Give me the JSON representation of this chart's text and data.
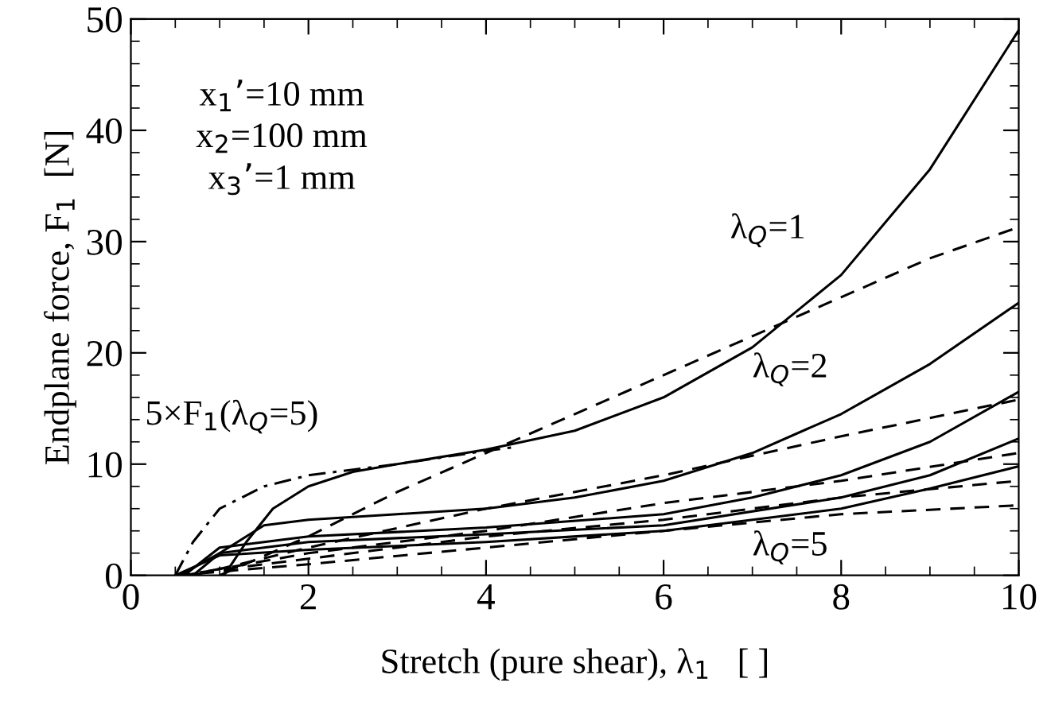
{
  "chart_data": {
    "type": "line",
    "xlabel": "Stretch (pure shear), λ$_{1}$   [ ]",
    "ylabel": "Endplane force, F$_{1}$  [N]",
    "xlim": [
      0,
      10
    ],
    "ylim": [
      0,
      50
    ],
    "xticks": [
      0,
      2,
      4,
      6,
      8,
      10
    ],
    "yticks": [
      0,
      10,
      20,
      30,
      40,
      50
    ],
    "grid": false,
    "legend": false,
    "series": [
      {
        "color": "#000000",
        "line_style": "solid",
        "x": [
          1.05,
          1.3,
          1.6,
          2,
          2.5,
          3,
          4,
          5,
          6,
          7,
          8,
          9,
          10
        ],
        "values": [
          0,
          3,
          6,
          8,
          9.3,
          10,
          11.3,
          13,
          16,
          20.5,
          27,
          36.5,
          49
        ]
      },
      {
        "color": "#000000",
        "line_style": "dashed",
        "x": [
          1,
          2,
          3,
          4,
          5,
          6,
          7,
          8,
          9,
          10
        ],
        "values": [
          0,
          3.5,
          7.5,
          11,
          14.5,
          18,
          21.5,
          25,
          28.5,
          31.3
        ]
      },
      {
        "color": "#000000",
        "line_style": "solid",
        "x": [
          0.7,
          1,
          1.5,
          2,
          3,
          4,
          5,
          6,
          7,
          8,
          9,
          10
        ],
        "values": [
          0,
          2,
          4.5,
          5,
          5.5,
          6,
          7,
          8.5,
          11,
          14.5,
          19,
          24.5
        ]
      },
      {
        "color": "#000000",
        "line_style": "dashed",
        "x": [
          0.7,
          2,
          4,
          6,
          8,
          10
        ],
        "values": [
          0,
          2.5,
          6,
          9,
          12.5,
          15.8
        ]
      },
      {
        "color": "#000000",
        "line_style": "solid",
        "x": [
          0.6,
          1,
          2,
          4,
          6,
          7,
          8,
          9,
          10
        ],
        "values": [
          0,
          2.5,
          3.5,
          4.3,
          5.5,
          7,
          9,
          12,
          16.5
        ]
      },
      {
        "color": "#000000",
        "line_style": "dashed",
        "x": [
          0.6,
          2,
          4,
          6,
          8,
          10
        ],
        "values": [
          0,
          2,
          4,
          6.5,
          8.5,
          11
        ]
      },
      {
        "color": "#000000",
        "line_style": "solid",
        "x": [
          0.55,
          1,
          2,
          4,
          6,
          8,
          9,
          10
        ],
        "values": [
          0,
          2,
          3,
          3.7,
          4.5,
          7,
          9,
          12.3
        ]
      },
      {
        "color": "#000000",
        "line_style": "dashed",
        "x": [
          0.5,
          2,
          4,
          6,
          8,
          10
        ],
        "values": [
          0,
          1.5,
          3.5,
          5,
          7,
          8.5
        ]
      },
      {
        "color": "#000000",
        "line_style": "solid",
        "x": [
          0.5,
          1,
          2,
          4,
          6,
          8,
          9,
          10
        ],
        "values": [
          0,
          1.8,
          2.3,
          3,
          4,
          6,
          7.8,
          9.8
        ]
      },
      {
        "color": "#000000",
        "line_style": "dashed",
        "x": [
          0.5,
          2,
          4,
          6,
          8,
          10
        ],
        "values": [
          0,
          1,
          2.5,
          4,
          5.5,
          6.3
        ]
      },
      {
        "color": "#000000",
        "line_style": "dashdot",
        "x": [
          0.5,
          0.7,
          1,
          1.5,
          2,
          3,
          4,
          4.3
        ],
        "values": [
          0,
          3,
          6,
          8,
          9,
          10,
          11.2,
          11.5
        ]
      }
    ],
    "annotations": [
      "x$_{1}$’=10 mm",
      "x$_{2}$=100 mm",
      "x$_{3}$’=1 mm",
      "λ$_{Q}$=1",
      "λ$_{Q}$=2",
      "λ$_{Q}$=5",
      "5×F$_{1}$(λ$_{Q}$=5)"
    ]
  }
}
